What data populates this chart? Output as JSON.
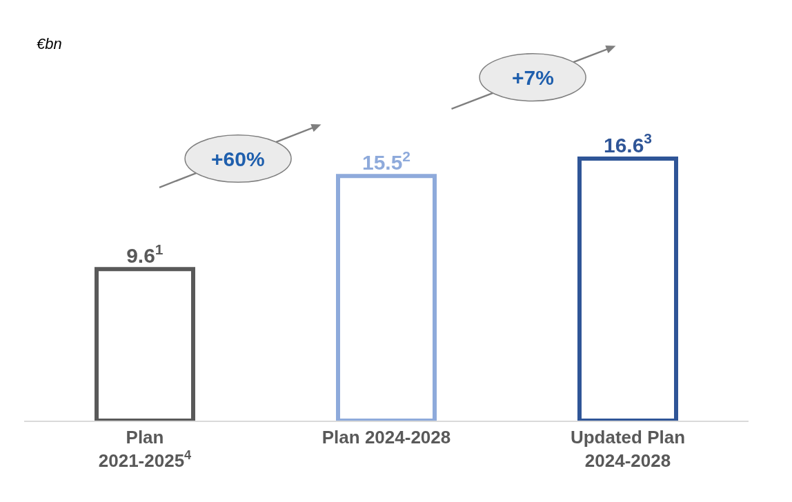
{
  "chart_data": {
    "type": "bar",
    "categories": [
      "Plan 2021-2025$^{4}$",
      "Plan 2024-2028",
      "Updated Plan 2024-2028"
    ],
    "values": [
      9.6,
      15.5,
      16.6
    ],
    "colors": [
      "#595959",
      "#8eaadb",
      "#2f5597"
    ],
    "value_labels": [
      "9.6$^{1}$",
      "15.5$^{2}$",
      "16.6$^{3}$"
    ],
    "annotations": [
      "€bn",
      "+60%",
      "+7%"
    ],
    "legend": false
  }
}
